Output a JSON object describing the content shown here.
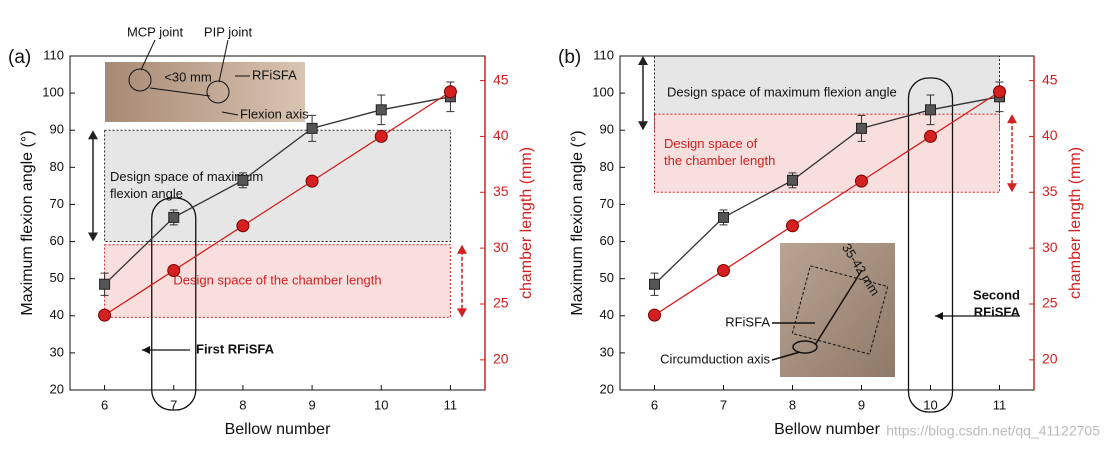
{
  "chart_data": [
    {
      "type": "line",
      "label": "(a)",
      "xlabel": "Bellow number",
      "ylabel": "Maximum flexion angle (°)",
      "y2label": "chamber length (mm)",
      "x": [
        6,
        7,
        8,
        9,
        10,
        11
      ],
      "xlim": [
        5.5,
        11.5
      ],
      "xticks": [
        6,
        7,
        8,
        9,
        10,
        11
      ],
      "ylim": [
        20,
        110
      ],
      "yticks": [
        20,
        30,
        40,
        50,
        60,
        70,
        80,
        90,
        100,
        110
      ],
      "y2lim": [
        17.3,
        47.2
      ],
      "y2ticks": [
        20,
        25,
        30,
        35,
        40,
        45
      ],
      "series": [
        {
          "color": "#555555",
          "values": [
            48.5,
            66.5,
            76.5,
            90.5,
            95.5,
            99
          ],
          "errors": [
            3,
            2,
            2,
            3.5,
            4,
            4
          ]
        },
        {
          "color": "#d42020",
          "axis": "y2",
          "values": [
            24,
            28,
            32,
            36,
            40,
            44
          ]
        }
      ],
      "regions": [
        {
          "axis": "y",
          "range": [
            60,
            90
          ],
          "x": [
            6,
            11
          ],
          "color": "#e6e6e6",
          "label": [
            "Design space of maximum",
            "flexion angle"
          ]
        },
        {
          "axis": "y2",
          "range": [
            23.8,
            30.3
          ],
          "x": [
            6,
            11
          ],
          "color": "#f9dede",
          "label": [
            "Design space of the chamber length"
          ]
        }
      ],
      "highlight": {
        "x": 7,
        "label": [
          "First RFiSFA"
        ]
      },
      "inset_labels": [
        "MCP joint",
        "PIP joint",
        "<30 mm",
        "RFiSFA",
        "Flexion axis"
      ]
    },
    {
      "type": "line",
      "label": "(b)",
      "xlabel": "Bellow number",
      "ylabel": "Maximum flexion angle (°)",
      "y2label": "chamber length (mm)",
      "x": [
        6,
        7,
        8,
        9,
        10,
        11
      ],
      "xlim": [
        5.5,
        11.5
      ],
      "xticks": [
        6,
        7,
        8,
        9,
        10,
        11
      ],
      "ylim": [
        20,
        110
      ],
      "yticks": [
        20,
        30,
        40,
        50,
        60,
        70,
        80,
        90,
        100,
        110
      ],
      "y2lim": [
        17.3,
        47.2
      ],
      "y2ticks": [
        20,
        25,
        30,
        35,
        40,
        45
      ],
      "series": [
        {
          "color": "#555555",
          "values": [
            48.5,
            66.5,
            76.5,
            90.5,
            95.5,
            99
          ],
          "errors": [
            3,
            2,
            2,
            3.5,
            4,
            4
          ]
        },
        {
          "color": "#d42020",
          "axis": "y2",
          "values": [
            24,
            28,
            32,
            36,
            40,
            44
          ]
        }
      ],
      "regions": [
        {
          "axis": "y",
          "range": [
            90,
            110
          ],
          "x": [
            6,
            11
          ],
          "color": "#e6e6e6",
          "label": [
            "Design space of maximum flexion angle"
          ]
        },
        {
          "axis": "y2",
          "range": [
            35,
            42
          ],
          "x": [
            6,
            11
          ],
          "color": "#f9dede",
          "label": [
            "Design space of",
            "the chamber length"
          ]
        }
      ],
      "highlight": {
        "x": 10,
        "label": [
          "Second",
          "RFiSFA"
        ]
      },
      "inset_labels": [
        "35-42 mm",
        "RFiSFA",
        "Circumduction axis"
      ]
    }
  ],
  "watermark": "https://blog.csdn.net/qq_41122705"
}
